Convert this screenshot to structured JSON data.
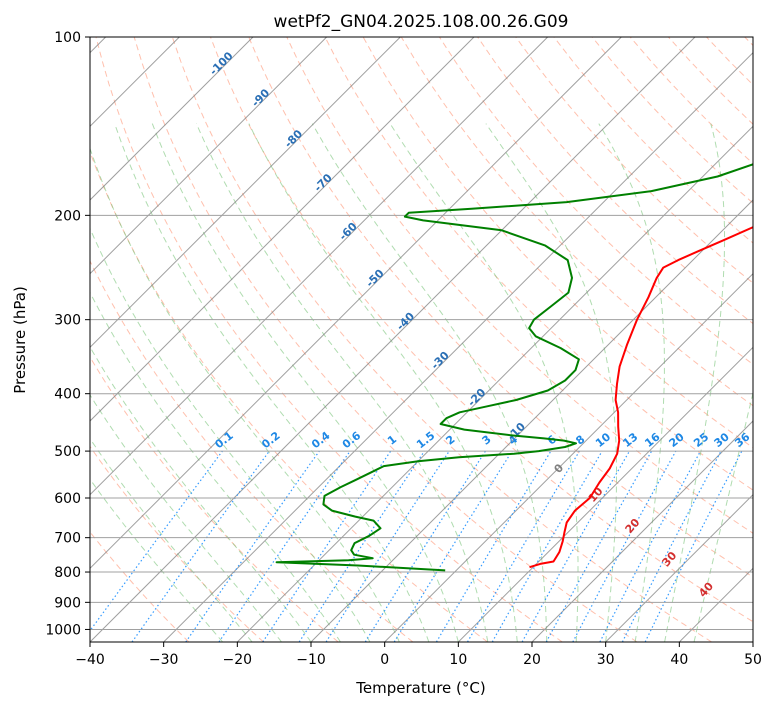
{
  "chart_data": {
    "type": "line",
    "title": "wetPf2_GN04.2025.108.00.26.G09",
    "xlabel": "Temperature (°C)",
    "ylabel": "Pressure (hPa)",
    "xlim": [
      -40,
      50
    ],
    "ylim_hpa": [
      1050,
      100
    ],
    "y_scale": "log",
    "x_ticks": [
      -40,
      -30,
      -20,
      -10,
      0,
      10,
      20,
      30,
      40,
      50
    ],
    "x_tick_labels": [
      "−40",
      "−30",
      "−20",
      "−10",
      "0",
      "10",
      "20",
      "30",
      "40",
      "50"
    ],
    "y_ticks": [
      100,
      200,
      300,
      400,
      500,
      600,
      700,
      800,
      900,
      1000
    ],
    "y_tick_labels": [
      "100",
      "200",
      "300",
      "400",
      "500",
      "600",
      "700",
      "800",
      "900",
      "1000"
    ],
    "grid": true,
    "skew_deg": 45,
    "colors": {
      "temperature": "#ff0000",
      "dewpoint": "#008000",
      "isotherm": "#7f7f7f",
      "grid": "#a0a0a0",
      "dry_adiabat": "#ff8c69",
      "moist_adiabat": "#7cc47c",
      "mixing_ratio": "#1e90ff",
      "mixing_label": "#1e88e5",
      "dry_label": "#2a6fb5",
      "moist_label": "#d32f2f",
      "zero_label": "#808080"
    },
    "series": [
      {
        "role": "temperature",
        "points": [
          [
            9.5,
            785
          ],
          [
            10.5,
            775
          ],
          [
            12.0,
            768
          ],
          [
            11.5,
            740
          ],
          [
            10.5,
            710
          ],
          [
            9.5,
            685
          ],
          [
            8.5,
            660
          ],
          [
            8.0,
            630
          ],
          [
            8.3,
            600
          ],
          [
            7.5,
            565
          ],
          [
            7.0,
            535
          ],
          [
            6.0,
            505
          ],
          [
            4.5,
            480
          ],
          [
            2.5,
            455
          ],
          [
            0.5,
            430
          ],
          [
            -1.5,
            410
          ],
          [
            -3.5,
            385
          ],
          [
            -5.5,
            360
          ],
          [
            -7.5,
            330
          ],
          [
            -9.5,
            300
          ],
          [
            -11.0,
            275
          ],
          [
            -12.5,
            255
          ],
          [
            -13.0,
            245
          ],
          [
            -12.0,
            238
          ],
          [
            -10.5,
            230
          ],
          [
            -8.5,
            220
          ],
          [
            -6.0,
            208
          ],
          [
            -3.5,
            195
          ],
          [
            -1.0,
            182
          ],
          [
            1.5,
            170
          ],
          [
            4.0,
            158
          ],
          [
            7.0,
            145
          ],
          [
            9.0,
            135
          ],
          [
            10.0,
            127
          ],
          [
            10.5,
            118
          ],
          [
            10.5,
            111
          ],
          [
            11.0,
            105
          ],
          [
            11.5,
            100
          ]
        ]
      },
      {
        "role": "dewpoint",
        "points": [
          [
            -1.5,
            795
          ],
          [
            -14,
            780
          ],
          [
            -25.5,
            770
          ],
          [
            -16,
            764
          ],
          [
            -13,
            758
          ],
          [
            -16,
            748
          ],
          [
            -17,
            735
          ],
          [
            -17.5,
            715
          ],
          [
            -16.5,
            695
          ],
          [
            -16,
            675
          ],
          [
            -18,
            655
          ],
          [
            -21,
            645
          ],
          [
            -25,
            630
          ],
          [
            -27,
            615
          ],
          [
            -28,
            595
          ],
          [
            -27,
            575
          ],
          [
            -26,
            560
          ],
          [
            -25,
            545
          ],
          [
            -24,
            530
          ],
          [
            -20,
            520
          ],
          [
            -15,
            512
          ],
          [
            -8,
            505
          ],
          [
            -5,
            500
          ],
          [
            -2,
            492
          ],
          [
            -1,
            485
          ],
          [
            -3,
            480
          ],
          [
            -6,
            476
          ],
          [
            -11,
            470
          ],
          [
            -18,
            460
          ],
          [
            -22,
            450
          ],
          [
            -22,
            440
          ],
          [
            -21,
            430
          ],
          [
            -18,
            420
          ],
          [
            -15,
            410
          ],
          [
            -12,
            395
          ],
          [
            -11,
            380
          ],
          [
            -11,
            365
          ],
          [
            -12,
            350
          ],
          [
            -16,
            335
          ],
          [
            -21,
            320
          ],
          [
            -23,
            310
          ],
          [
            -23.5,
            300
          ],
          [
            -23,
            285
          ],
          [
            -22.5,
            270
          ],
          [
            -24,
            255
          ],
          [
            -27,
            238
          ],
          [
            -32,
            225
          ],
          [
            -40,
            212
          ],
          [
            -52,
            204
          ],
          [
            -55,
            201
          ],
          [
            -55,
            198
          ],
          [
            -47,
            195
          ],
          [
            -35,
            190
          ],
          [
            -25,
            182
          ],
          [
            -18,
            172
          ],
          [
            -14,
            162
          ],
          [
            -12,
            152
          ],
          [
            -12.5,
            142
          ],
          [
            -14,
            132
          ],
          [
            -14,
            122
          ],
          [
            -12,
            114
          ],
          [
            -9,
            106
          ],
          [
            -7,
            100
          ]
        ]
      }
    ],
    "dry_adiabat_labels": [
      "-100",
      "-90",
      "-80",
      "-70",
      "-60",
      "-50",
      "-40",
      "-30",
      "-20",
      "-10"
    ],
    "mixing_ratio_labels": [
      "0.1",
      "0.2",
      "0.4",
      "0.6",
      "1",
      "1.5",
      "2",
      "3",
      "4",
      "6",
      "8",
      "10",
      "13",
      "16",
      "20",
      "25",
      "30",
      "36"
    ],
    "moist_adiabat_labels": [
      "0",
      "10",
      "20",
      "30",
      "40"
    ]
  }
}
